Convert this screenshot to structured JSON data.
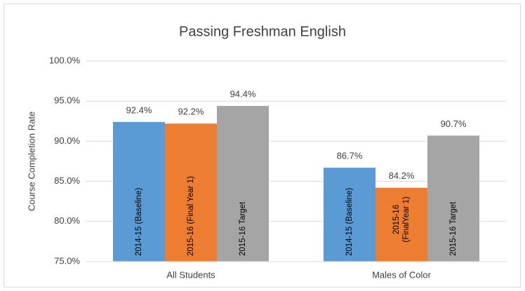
{
  "chart_data": {
    "type": "bar",
    "title": "Passing Freshman English",
    "y_label": "Course Completion Rate",
    "categories": [
      "All Students",
      "Males of Color"
    ],
    "series": [
      {
        "color": "#5b9bd5",
        "values": [
          92.4,
          86.7
        ],
        "value_labels": [
          "92.4%",
          "86.7%"
        ],
        "bar_labels": [
          [
            "2014-15 (Baseline)"
          ],
          [
            "2014-15 (Baseline)"
          ]
        ]
      },
      {
        "color": "#ed7d31",
        "values": [
          92.2,
          84.2
        ],
        "value_labels": [
          "92.2%",
          "84.2%"
        ],
        "bar_labels": [
          [
            "2015-16 (Final Year 1)"
          ],
          [
            "2015-16",
            "(FinalYear 1)"
          ]
        ]
      },
      {
        "color": "#a5a5a5",
        "values": [
          94.4,
          90.7
        ],
        "value_labels": [
          "94.4%",
          "90.7%"
        ],
        "bar_labels": [
          [
            "2015-16 Target"
          ],
          [
            "2015-16 Target"
          ]
        ]
      }
    ],
    "ylim": [
      75,
      100
    ],
    "yticks": [
      {
        "value": 75,
        "label": "75.0%"
      },
      {
        "value": 80,
        "label": "80.0%"
      },
      {
        "value": 85,
        "label": "85.0%"
      },
      {
        "value": 90,
        "label": "90.0%"
      },
      {
        "value": 95,
        "label": "95.0%"
      },
      {
        "value": 100,
        "label": "100.0%"
      }
    ],
    "grid": true
  }
}
